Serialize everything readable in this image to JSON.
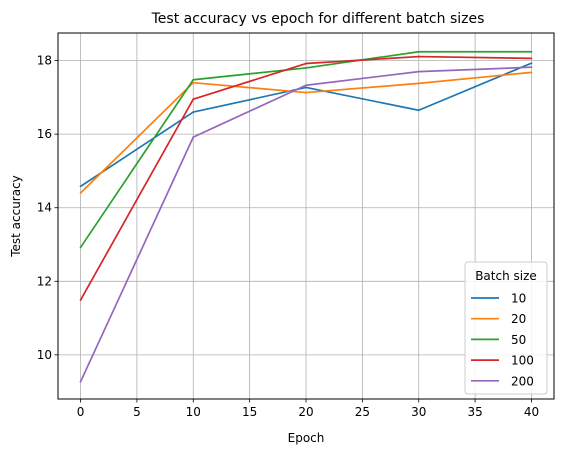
{
  "chart_data": {
    "type": "line",
    "title": "Test accuracy vs epoch for different batch sizes",
    "xlabel": "Epoch",
    "ylabel": "Test accuracy",
    "x": [
      0,
      10,
      20,
      30,
      40
    ],
    "xlim": [
      -2,
      42
    ],
    "ylim": [
      8.8,
      18.75
    ],
    "xticks": [
      "0",
      "5",
      "10",
      "15",
      "20",
      "25",
      "30",
      "35",
      "40"
    ],
    "yticks": [
      "10",
      "12",
      "14",
      "16",
      "18"
    ],
    "grid": true,
    "legend": {
      "title": "Batch size",
      "placement": "lower-right"
    },
    "series": [
      {
        "name": "10",
        "color": "#1f77b4",
        "values": [
          14.58,
          16.6,
          17.27,
          16.65,
          17.93
        ]
      },
      {
        "name": "20",
        "color": "#ff7f0e",
        "values": [
          14.4,
          17.4,
          17.13,
          17.38,
          17.68
        ]
      },
      {
        "name": "50",
        "color": "#2ca02c",
        "values": [
          12.92,
          17.48,
          17.8,
          18.24,
          18.24
        ]
      },
      {
        "name": "100",
        "color": "#d62728",
        "values": [
          11.49,
          16.95,
          17.92,
          18.11,
          18.06
        ]
      },
      {
        "name": "200",
        "color": "#9467bd",
        "values": [
          9.27,
          15.92,
          17.33,
          17.7,
          17.82
        ]
      }
    ]
  }
}
